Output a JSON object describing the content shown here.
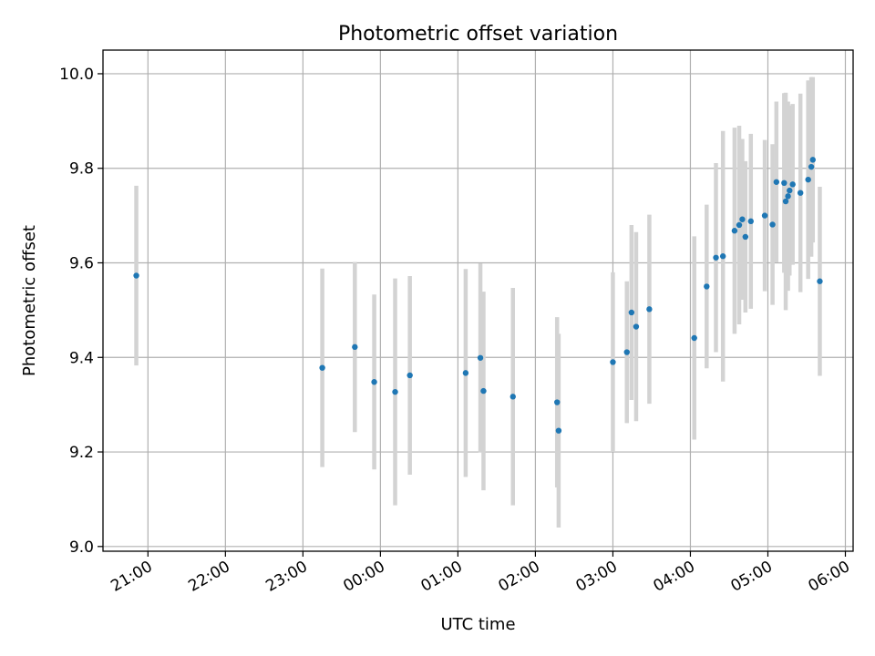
{
  "chart_data": {
    "type": "scatter",
    "title": "Photometric offset variation",
    "xlabel": "UTC time",
    "ylabel": "Photometric offset",
    "x_unit": "hours, UTC (24+ = following day)",
    "xlim": [
      20.42,
      30.1
    ],
    "ylim": [
      8.99,
      10.05
    ],
    "x_ticks": [
      {
        "value": 21,
        "label": "21:00"
      },
      {
        "value": 22,
        "label": "22:00"
      },
      {
        "value": 23,
        "label": "23:00"
      },
      {
        "value": 24,
        "label": "00:00"
      },
      {
        "value": 25,
        "label": "01:00"
      },
      {
        "value": 26,
        "label": "02:00"
      },
      {
        "value": 27,
        "label": "03:00"
      },
      {
        "value": 28,
        "label": "04:00"
      },
      {
        "value": 29,
        "label": "05:00"
      },
      {
        "value": 30,
        "label": "06:00"
      }
    ],
    "y_ticks": [
      {
        "value": 9.0,
        "label": "9.0"
      },
      {
        "value": 9.2,
        "label": "9.2"
      },
      {
        "value": 9.4,
        "label": "9.4"
      },
      {
        "value": 9.6,
        "label": "9.6"
      },
      {
        "value": 9.8,
        "label": "9.8"
      },
      {
        "value": 10.0,
        "label": "10.0"
      }
    ],
    "grid": true,
    "colors": {
      "points": "#1f77b4",
      "errorbars": "#d3d3d3",
      "grid": "#b0b0b0"
    },
    "points": [
      {
        "x": 20.85,
        "y": 9.573,
        "err": 0.19
      },
      {
        "x": 23.25,
        "y": 9.378,
        "err": 0.21
      },
      {
        "x": 23.67,
        "y": 9.422,
        "err": 0.18
      },
      {
        "x": 23.92,
        "y": 9.348,
        "err": 0.185
      },
      {
        "x": 24.19,
        "y": 9.327,
        "err": 0.24
      },
      {
        "x": 24.38,
        "y": 9.362,
        "err": 0.21
      },
      {
        "x": 25.1,
        "y": 9.367,
        "err": 0.22
      },
      {
        "x": 25.29,
        "y": 9.399,
        "err": 0.2
      },
      {
        "x": 25.33,
        "y": 9.329,
        "err": 0.21
      },
      {
        "x": 25.71,
        "y": 9.317,
        "err": 0.23
      },
      {
        "x": 26.28,
        "y": 9.305,
        "err": 0.18
      },
      {
        "x": 26.3,
        "y": 9.245,
        "err": 0.205
      },
      {
        "x": 27.0,
        "y": 9.39,
        "err": 0.19
      },
      {
        "x": 27.18,
        "y": 9.411,
        "err": 0.15
      },
      {
        "x": 27.24,
        "y": 9.495,
        "err": 0.185
      },
      {
        "x": 27.3,
        "y": 9.465,
        "err": 0.2
      },
      {
        "x": 27.47,
        "y": 9.502,
        "err": 0.2
      },
      {
        "x": 28.05,
        "y": 9.441,
        "err": 0.215
      },
      {
        "x": 28.21,
        "y": 9.55,
        "err": 0.173
      },
      {
        "x": 28.33,
        "y": 9.611,
        "err": 0.2
      },
      {
        "x": 28.42,
        "y": 9.614,
        "err": 0.265
      },
      {
        "x": 28.57,
        "y": 9.668,
        "err": 0.218
      },
      {
        "x": 28.63,
        "y": 9.68,
        "err": 0.21
      },
      {
        "x": 28.67,
        "y": 9.692,
        "err": 0.17
      },
      {
        "x": 28.71,
        "y": 9.655,
        "err": 0.16
      },
      {
        "x": 28.78,
        "y": 9.688,
        "err": 0.185
      },
      {
        "x": 28.96,
        "y": 9.7,
        "err": 0.16
      },
      {
        "x": 29.06,
        "y": 9.681,
        "err": 0.17
      },
      {
        "x": 29.11,
        "y": 9.771,
        "err": 0.17
      },
      {
        "x": 29.21,
        "y": 9.769,
        "err": 0.19
      },
      {
        "x": 29.23,
        "y": 9.73,
        "err": 0.23
      },
      {
        "x": 29.26,
        "y": 9.741,
        "err": 0.2
      },
      {
        "x": 29.28,
        "y": 9.753,
        "err": 0.18
      },
      {
        "x": 29.32,
        "y": 9.766,
        "err": 0.17
      },
      {
        "x": 29.42,
        "y": 9.748,
        "err": 0.21
      },
      {
        "x": 29.52,
        "y": 9.776,
        "err": 0.21
      },
      {
        "x": 29.56,
        "y": 9.803,
        "err": 0.19
      },
      {
        "x": 29.58,
        "y": 9.818,
        "err": 0.175
      },
      {
        "x": 29.67,
        "y": 9.561,
        "err": 0.2
      }
    ]
  }
}
